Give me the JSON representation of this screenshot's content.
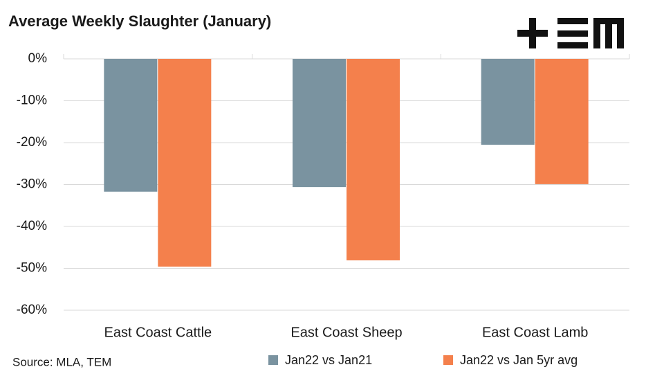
{
  "chart_data": {
    "type": "bar",
    "title": "Average Weekly Slaughter (January)",
    "source": "Source: MLA, TEM",
    "categories": [
      "East Coast Cattle",
      "East Coast Sheep",
      "East Coast Lamb"
    ],
    "series": [
      {
        "name": "Jan22 vs Jan21",
        "color": "#7a93a0",
        "values": [
          -31.7,
          -30.6,
          -20.5
        ]
      },
      {
        "name": "Jan22 vs Jan 5yr avg",
        "color": "#f4804c",
        "values": [
          -49.6,
          -48.1,
          -29.9
        ]
      }
    ],
    "ylim": [
      -60,
      0
    ],
    "yticks": [
      {
        "value": 0,
        "label": "0%"
      },
      {
        "value": -10,
        "label": "-10%"
      },
      {
        "value": -20,
        "label": "-20%"
      },
      {
        "value": -30,
        "label": "-30%"
      },
      {
        "value": -40,
        "label": "-40%"
      },
      {
        "value": -50,
        "label": "-50%"
      },
      {
        "value": -60,
        "label": "-60%"
      }
    ],
    "grid": true
  }
}
